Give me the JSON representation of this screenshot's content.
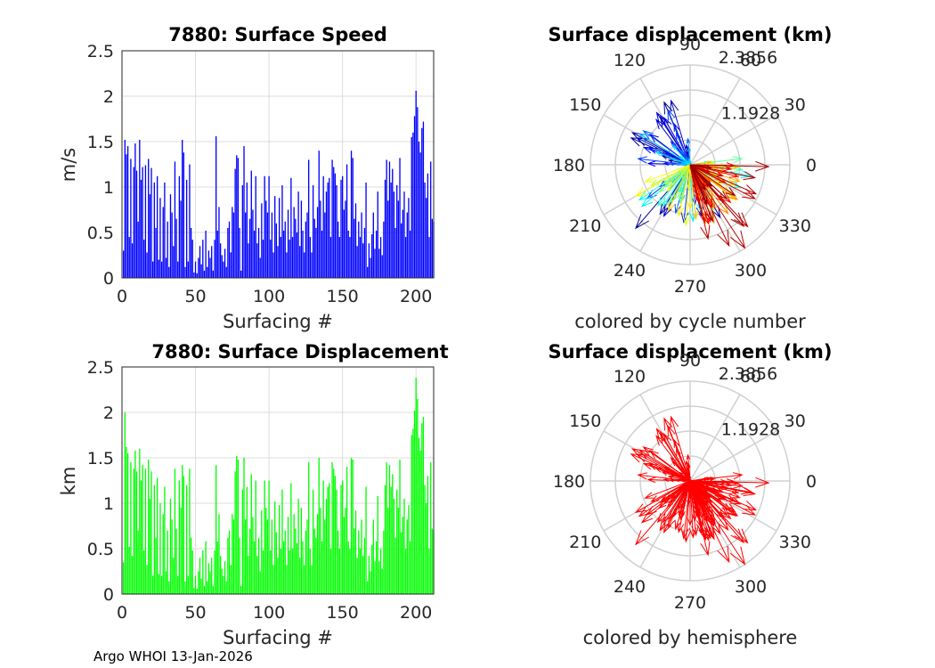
{
  "footer": "Argo WHOI 13-Jan-2026",
  "speed_panel": {
    "title": "7880: Surface Speed",
    "xlabel": "Surfacing #",
    "ylabel": "m/s",
    "bar_color": "#0000ff"
  },
  "disp_panel": {
    "title": "7880: Surface Displacement",
    "xlabel": "Surfacing #",
    "ylabel": "km",
    "bar_color": "#00ff00"
  },
  "polar_cycle": {
    "title": "Surface displacement (km)",
    "caption": "colored by cycle number",
    "rlabel_outer": "2.3856",
    "rlabel_inner": "1.1928",
    "angle_labels": [
      "0",
      "30",
      "60",
      "90",
      "120",
      "150",
      "180",
      "210",
      "240",
      "270",
      "300",
      "330"
    ]
  },
  "polar_hemi": {
    "title": "Surface displacement (km)",
    "caption": "colored by hemisphere",
    "rlabel_outer": "2.3856",
    "rlabel_inner": "1.1928",
    "angle_labels": [
      "0",
      "30",
      "60",
      "90",
      "120",
      "150",
      "180",
      "210",
      "240",
      "270",
      "300",
      "330"
    ],
    "arrow_color": "#ff0000"
  },
  "chart_data": [
    {
      "type": "bar",
      "title": "7880: Surface Speed",
      "xlabel": "Surfacing #",
      "ylabel": "m/s",
      "xlim": [
        0,
        212
      ],
      "ylim": [
        0,
        2.5
      ],
      "xticks": [
        0,
        50,
        100,
        150,
        200
      ],
      "yticks": [
        0,
        0.5,
        1,
        1.5,
        2,
        2.5
      ],
      "grid": true,
      "values": [
        0.3,
        1.52,
        1.36,
        1.45,
        0.45,
        1.31,
        0.38,
        1.22,
        1.48,
        1.18,
        0.62,
        1.52,
        1.08,
        1.22,
        0.42,
        1.24,
        0.28,
        1.31,
        0.92,
        1.21,
        0.18,
        1.05,
        0.55,
        1.12,
        0.2,
        0.88,
        0.18,
        0.78,
        1.05,
        0.22,
        0.62,
        0.12,
        0.92,
        0.72,
        0.35,
        1.28,
        0.65,
        0.18,
        1.12,
        0.85,
        1.52,
        1.38,
        0.12,
        1.08,
        0.18,
        1.25,
        0.55,
        0.42,
        0.06,
        0.18,
        0.05,
        0.22,
        0.35,
        0.15,
        0.42,
        0.08,
        0.52,
        0.12,
        0.3,
        0.22,
        0.35,
        0.08,
        0.42,
        1.56,
        0.52,
        0.78,
        0.38,
        0.25,
        0.18,
        0.32,
        0.12,
        0.55,
        0.62,
        0.28,
        0.78,
        0.72,
        1.2,
        1.35,
        1.32,
        0.55,
        0.08,
        1.02,
        1.45,
        0.72,
        1.05,
        0.38,
        0.65,
        1.18,
        0.75,
        0.52,
        1.12,
        0.38,
        0.55,
        0.22,
        0.82,
        0.42,
        1.12,
        0.85,
        0.72,
        1.12,
        0.42,
        0.72,
        0.28,
        0.9,
        0.6,
        0.35,
        0.88,
        0.45,
        1.02,
        0.52,
        0.62,
        0.28,
        0.75,
        0.42,
        1.1,
        0.45,
        0.78,
        0.65,
        0.5,
        0.95,
        0.35,
        0.85,
        0.52,
        0.28,
        0.62,
        0.72,
        1.3,
        0.45,
        0.28,
        1.02,
        0.65,
        0.55,
        0.78,
        1.4,
        0.85,
        0.52,
        1.12,
        0.72,
        0.95,
        1.05,
        1.1,
        0.45,
        1.3,
        1.22,
        1.15,
        1.02,
        0.62,
        0.45,
        1.08,
        1.12,
        0.75,
        0.85,
        1.25,
        0.52,
        0.45,
        1.4,
        1.32,
        0.65,
        0.82,
        0.35,
        0.62,
        0.45,
        0.72,
        0.38,
        0.55,
        1.05,
        0.12,
        0.38,
        0.22,
        0.48,
        0.72,
        0.32,
        0.52,
        0.95,
        0.32,
        0.45,
        0.25,
        0.62,
        1.08,
        1.3,
        0.85,
        1.28,
        1.05,
        1.2,
        0.95,
        0.55,
        1.02,
        0.85,
        1.32,
        0.6,
        0.75,
        0.95,
        0.45,
        0.72,
        0.88,
        0.52,
        1.55,
        1.6,
        1.78,
        2.06,
        1.88,
        1.5,
        1.38,
        1.65,
        1.72,
        1.05,
        0.88,
        1.15,
        0.45,
        1.28,
        0.65,
        0.62
      ]
    },
    {
      "type": "bar",
      "title": "7880: Surface Displacement",
      "xlabel": "Surfacing #",
      "ylabel": "km",
      "xlim": [
        0,
        212
      ],
      "ylim": [
        0,
        2.5
      ],
      "xticks": [
        0,
        50,
        100,
        150,
        200
      ],
      "yticks": [
        0,
        0.5,
        1,
        1.5,
        2,
        2.5
      ],
      "grid": true,
      "values": [
        0.35,
        2.0,
        1.62,
        1.55,
        0.52,
        1.45,
        0.42,
        1.38,
        1.58,
        1.35,
        0.7,
        1.6,
        1.25,
        1.42,
        0.48,
        1.38,
        0.32,
        1.48,
        1.05,
        1.35,
        0.2,
        1.2,
        0.62,
        1.28,
        0.22,
        1.0,
        0.2,
        0.88,
        1.18,
        0.25,
        0.7,
        0.14,
        1.05,
        0.82,
        0.4,
        1.38,
        0.72,
        0.2,
        1.25,
        0.95,
        1.42,
        1.3,
        0.14,
        1.2,
        0.2,
        1.38,
        0.62,
        0.48,
        0.07,
        0.2,
        0.06,
        0.25,
        0.4,
        0.17,
        0.48,
        0.09,
        0.58,
        0.14,
        0.34,
        0.25,
        0.4,
        0.09,
        0.48,
        1.42,
        0.58,
        0.88,
        0.42,
        0.28,
        0.2,
        0.36,
        0.14,
        0.62,
        0.7,
        0.32,
        0.88,
        0.82,
        1.35,
        1.52,
        1.48,
        0.62,
        0.09,
        1.15,
        1.5,
        0.82,
        1.18,
        0.42,
        0.72,
        1.32,
        0.85,
        0.58,
        1.25,
        0.42,
        0.62,
        0.25,
        0.92,
        0.48,
        1.25,
        0.95,
        0.82,
        1.25,
        0.48,
        0.82,
        0.32,
        1.02,
        0.68,
        0.4,
        0.98,
        0.5,
        1.15,
        0.58,
        0.7,
        0.32,
        0.85,
        0.48,
        1.22,
        0.5,
        0.88,
        0.72,
        0.56,
        1.05,
        0.4,
        0.95,
        0.58,
        0.32,
        0.7,
        0.82,
        1.45,
        0.5,
        0.32,
        1.15,
        0.72,
        0.62,
        0.88,
        1.5,
        0.95,
        0.58,
        1.25,
        0.82,
        1.05,
        1.18,
        1.22,
        0.5,
        1.45,
        1.38,
        1.3,
        1.15,
        0.7,
        0.5,
        1.2,
        1.25,
        0.85,
        0.95,
        1.4,
        0.58,
        0.5,
        1.5,
        1.48,
        0.72,
        0.92,
        0.4,
        0.7,
        0.5,
        0.82,
        0.42,
        0.62,
        1.18,
        0.14,
        0.42,
        0.25,
        0.54,
        0.82,
        0.36,
        0.58,
        1.08,
        0.36,
        0.5,
        0.28,
        0.7,
        1.2,
        1.45,
        0.95,
        1.42,
        1.18,
        1.32,
        1.05,
        0.62,
        1.15,
        0.95,
        1.48,
        0.68,
        0.85,
        1.05,
        0.5,
        0.82,
        0.98,
        0.58,
        1.75,
        1.82,
        2.02,
        2.38,
        2.15,
        1.72,
        1.58,
        1.88,
        1.95,
        1.2,
        1.0,
        1.3,
        0.5,
        1.45,
        0.72,
        0.7
      ]
    },
    {
      "type": "polar-compass",
      "title": "Surface displacement (km)",
      "caption": "colored by cycle number",
      "rmax": 2.3856,
      "rticks": [
        1.1928,
        2.3856
      ],
      "angles_deg": [
        0,
        30,
        60,
        90,
        120,
        150,
        180,
        210,
        240,
        270,
        300,
        330
      ]
    },
    {
      "type": "polar-compass",
      "title": "Surface displacement (km)",
      "caption": "colored by hemisphere",
      "rmax": 2.3856,
      "rticks": [
        1.1928,
        2.3856
      ],
      "angles_deg": [
        0,
        30,
        60,
        90,
        120,
        150,
        180,
        210,
        240,
        270,
        300,
        330
      ]
    }
  ]
}
